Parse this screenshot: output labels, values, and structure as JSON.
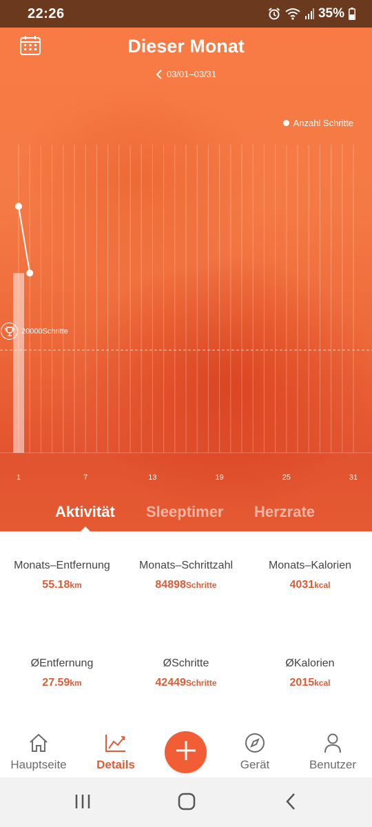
{
  "status_bar": {
    "time": "22:26",
    "battery": "35%",
    "icons": [
      "alarm-icon",
      "wifi-icon",
      "signal-icon",
      "battery-icon"
    ]
  },
  "header": {
    "title": "Dieser Monat",
    "date_range": "03/01–03/31",
    "icons": [
      "calendar-icon",
      "chevron-left-icon"
    ]
  },
  "chart_data": {
    "type": "line",
    "legend": "Anzahl Schritte",
    "x_tick_labels": [
      "1",
      "7",
      "13",
      "19",
      "25",
      "31"
    ],
    "x_range": [
      1,
      31
    ],
    "series": [
      {
        "name": "Anzahl Schritte",
        "x": [
          1,
          2
        ],
        "y": [
          48000,
          35000
        ]
      }
    ],
    "goal_line": {
      "value": 20000,
      "label": "20000Schritte"
    },
    "highlight_day": 1,
    "grid": true
  },
  "tabs": [
    {
      "label": "Aktivität",
      "active": true
    },
    {
      "label": "Sleeptimer",
      "active": false
    },
    {
      "label": "Herzrate",
      "active": false
    }
  ],
  "stats": {
    "monthly_distance": {
      "label": "Monats–Entfernung",
      "value": "55.18",
      "unit": "km"
    },
    "monthly_steps": {
      "label": "Monats–Schrittzahl",
      "value": "84898",
      "unit": "Schritte"
    },
    "monthly_calories": {
      "label": "Monats–Kalorien",
      "value": "4031",
      "unit": "kcal"
    },
    "avg_distance": {
      "label": "ØEntfernung",
      "value": "27.59",
      "unit": "km"
    },
    "avg_steps": {
      "label": "ØSchritte",
      "value": "42449",
      "unit": "Schritte"
    },
    "avg_calories": {
      "label": "ØKalorien",
      "value": "2015",
      "unit": "kcal"
    }
  },
  "bottom_nav": {
    "items": [
      {
        "label": "Hauptseite",
        "icon": "home-icon",
        "active": false
      },
      {
        "label": "Details",
        "icon": "chart-icon",
        "active": true
      },
      {
        "label": "Gerät",
        "icon": "compass-icon",
        "active": false
      },
      {
        "label": "Benutzer",
        "icon": "user-icon",
        "active": false
      }
    ],
    "add_icon": "plus-icon"
  },
  "colors": {
    "accent": "#f15d35",
    "accent_text": "#e05a35",
    "status_bar": "#6b3a1e"
  }
}
